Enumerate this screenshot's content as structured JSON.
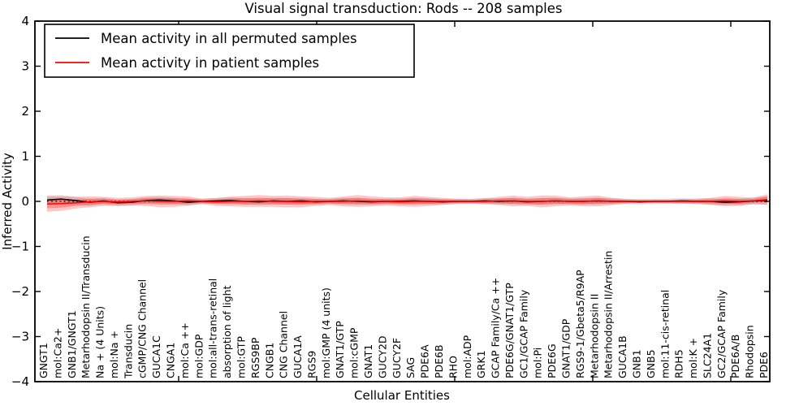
{
  "chart_data": {
    "type": "line",
    "title": "Visual signal transduction: Rods -- 208 samples",
    "xlabel": "Cellular Entities",
    "ylabel": "Inferred Activity",
    "ylim": [
      -4,
      4
    ],
    "yticks": [
      4,
      3,
      2,
      1,
      0,
      -1,
      -2,
      -3,
      -4
    ],
    "x_major_ticks": [
      10,
      20,
      30,
      40,
      50
    ],
    "grid": false,
    "legend_position": "upper left",
    "background_color": "#ffffff",
    "categories": [
      "GNGT1",
      "mol:Ca2+",
      "GNB1/GNGT1",
      "Metarhodopsin II/Transducin",
      "Na + (4 Units)",
      "mol:Na +",
      "Transducin",
      "cGMP/CNG Channel",
      "GUCA1C",
      "CNGA1",
      "mol:Ca ++",
      "mol:GDP",
      "mol:all-trans-retinal",
      "absorption of light",
      "mol:GTP",
      "RGS9BP",
      "CNGB1",
      "CNG Channel",
      "GUCA1A",
      "RGS9",
      "mol:GMP (4 units)",
      "GNAT1/GTP",
      "mol:cGMP",
      "GNAT1",
      "GUCY2D",
      "GUCY2F",
      "SAG",
      "PDE6A",
      "PDE6B",
      "RHO",
      "mol:ADP",
      "GRK1",
      "GCAP Family/Ca ++",
      "PDE6G/GNAT1/GTP",
      "GC1/GCAP Family",
      "mol:Pi",
      "PDE6G",
      "GNAT1/GDP",
      "RGS9-1/Gbeta5/R9AP",
      "Metarhodopsin II",
      "Metarhodopsin II/Arrestin",
      "GUCA1B",
      "GNB1",
      "GNB5",
      "mol:11-cis-retinal",
      "RDH5",
      "mol:K +",
      "SLC24A1",
      "GC2/GCAP Family",
      "PDE6A/B",
      "Rhodopsin",
      "PDE6"
    ],
    "zero_line": {
      "value": 0,
      "style": "dotted",
      "color": "#000000"
    },
    "series": [
      {
        "name": "Mean activity in all permuted samples",
        "color": "#000000",
        "band_color": "#bfbfbf",
        "values": [
          0.03,
          0.05,
          0.02,
          -0.02,
          0.01,
          -0.03,
          -0.02,
          0.02,
          0.03,
          0.01,
          -0.02,
          0.0,
          0.01,
          0.02,
          0.0,
          -0.01,
          0.01,
          0.0,
          0.01,
          -0.01,
          0.0,
          0.01,
          0.0,
          -0.01,
          0.0,
          0.0,
          0.01,
          0.0,
          -0.01,
          0.0,
          0.0,
          0.01,
          0.0,
          0.01,
          -0.01,
          0.0,
          0.01,
          0.0,
          0.0,
          0.01,
          0.0,
          0.0,
          -0.01,
          0.0,
          0.0,
          0.01,
          0.0,
          0.0,
          -0.02,
          -0.01,
          0.01,
          0.02
        ],
        "band_halfwidth": [
          0.1,
          0.09,
          0.08,
          0.08,
          0.07,
          0.07,
          0.07,
          0.07,
          0.07,
          0.07,
          0.07,
          0.06,
          0.06,
          0.07,
          0.07,
          0.07,
          0.07,
          0.07,
          0.07,
          0.06,
          0.06,
          0.07,
          0.07,
          0.06,
          0.06,
          0.06,
          0.07,
          0.07,
          0.06,
          0.06,
          0.06,
          0.06,
          0.07,
          0.07,
          0.07,
          0.07,
          0.07,
          0.07,
          0.07,
          0.07,
          0.07,
          0.06,
          0.06,
          0.06,
          0.06,
          0.06,
          0.06,
          0.07,
          0.07,
          0.07,
          0.08,
          0.09
        ]
      },
      {
        "name": "Mean activity in patient samples",
        "color": "#ff0000",
        "band_color": "#ff0000",
        "values": [
          -0.06,
          -0.05,
          -0.03,
          -0.01,
          0.0,
          -0.01,
          0.0,
          0.01,
          0.0,
          0.0,
          0.01,
          0.0,
          -0.01,
          0.0,
          0.0,
          0.01,
          0.0,
          0.0,
          -0.01,
          0.0,
          0.0,
          0.0,
          0.01,
          0.0,
          0.0,
          -0.01,
          0.0,
          0.0,
          0.0,
          0.0,
          0.0,
          0.0,
          0.01,
          0.01,
          0.0,
          0.0,
          0.01,
          0.0,
          0.0,
          0.01,
          0.0,
          0.0,
          0.0,
          0.0,
          0.0,
          0.0,
          0.0,
          0.0,
          0.01,
          0.0,
          0.01,
          0.04
        ],
        "band_halfwidth": [
          0.17,
          0.16,
          0.13,
          0.12,
          0.1,
          0.09,
          0.09,
          0.11,
          0.13,
          0.12,
          0.1,
          0.06,
          0.09,
          0.11,
          0.12,
          0.13,
          0.12,
          0.13,
          0.12,
          0.1,
          0.08,
          0.11,
          0.13,
          0.11,
          0.09,
          0.1,
          0.12,
          0.1,
          0.08,
          0.06,
          0.05,
          0.07,
          0.09,
          0.12,
          0.1,
          0.13,
          0.12,
          0.09,
          0.11,
          0.12,
          0.08,
          0.05,
          0.04,
          0.04,
          0.04,
          0.05,
          0.06,
          0.08,
          0.11,
          0.1,
          0.07,
          0.12
        ]
      }
    ]
  }
}
